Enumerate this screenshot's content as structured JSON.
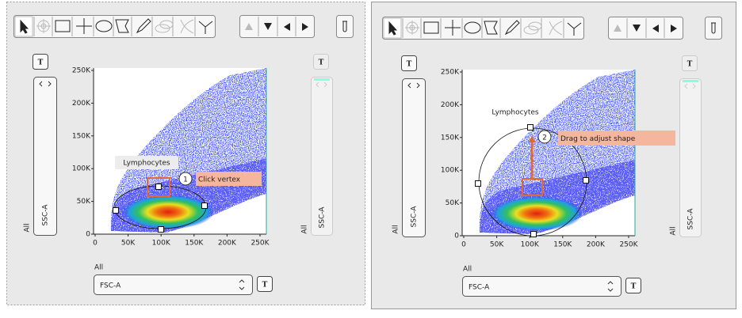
{
  "panels": [
    {
      "y_axis": {
        "toggle_button": "T",
        "scope": "All",
        "label": "SSC-A"
      },
      "y_ticks": [
        "250K",
        "200K",
        "150K",
        "100K",
        "50K",
        "0"
      ],
      "x_ticks": [
        "0",
        "50K",
        "100K",
        "150K",
        "200K",
        "250K"
      ],
      "x_axis": {
        "scope": "All",
        "label": "FSC-A",
        "toggle_button": "T"
      },
      "secondary_y_axis": {
        "toggle_button": "T",
        "scope": "All",
        "label": "SSC-A"
      },
      "gate": {
        "label": "Lymphocytes"
      },
      "callout": {
        "step": "1",
        "text": "Click vertex"
      }
    },
    {
      "y_axis": {
        "toggle_button": "T",
        "scope": "All",
        "label": "SSC-A"
      },
      "y_ticks": [
        "250K",
        "200K",
        "150K",
        "100K",
        "50K",
        "0"
      ],
      "x_ticks": [
        "0",
        "50K",
        "100K",
        "150K",
        "200K",
        "250K"
      ],
      "x_axis": {
        "scope": "All",
        "label": "FSC-A",
        "toggle_button": "T"
      },
      "secondary_y_axis": {
        "toggle_button": "T",
        "scope": "All",
        "label": "SSC-A"
      },
      "gate": {
        "label": "Lymphocytes"
      },
      "callout": {
        "step": "2",
        "text": "Drag to adjust shape"
      }
    }
  ]
}
